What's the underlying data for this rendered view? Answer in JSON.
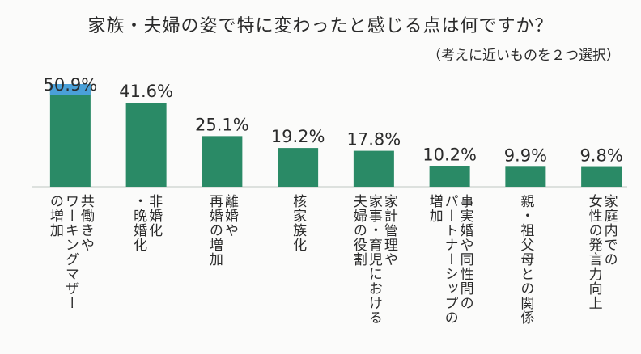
{
  "chart_data": {
    "type": "bar",
    "title": "家族・夫婦の姿で特に変わったと感じる点は何ですか？",
    "subtitle": "（考えに近いものを２つ選択）",
    "unit": "%",
    "categories": [
      [
        "共働きや",
        "ワーキングマザー",
        "の増加"
      ],
      [
        "非婚化",
        "・晩婚化"
      ],
      [
        "離婚や",
        "再婚の増加"
      ],
      [
        "核家族化"
      ],
      [
        "家計管理や",
        "家事・育児における",
        "夫婦の役割"
      ],
      [
        "事実婚や同性間の",
        "パートナーシップの",
        "増加"
      ],
      [
        "親・祖父母との関係"
      ],
      [
        "家庭内での",
        "女性の発言力向上"
      ]
    ],
    "values": [
      50.9,
      41.6,
      25.1,
      19.2,
      17.8,
      10.2,
      9.9,
      9.8
    ],
    "value_labels": [
      "50.9%",
      "41.6%",
      "25.1%",
      "19.2%",
      "17.8%",
      "10.2%",
      "9.9%",
      "9.8%"
    ],
    "ylim": [
      0,
      50.9
    ],
    "grid": false,
    "colors": {
      "bar": "#2a8a66",
      "highlight": "#4aa0d8"
    }
  }
}
